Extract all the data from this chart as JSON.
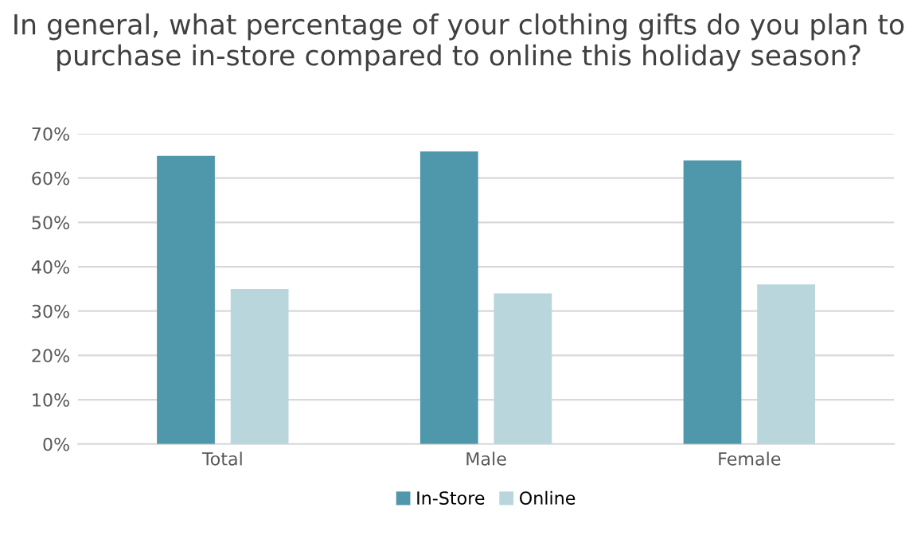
{
  "chart_data": {
    "type": "bar",
    "title": "In general, what percentage of your clothing gifts do you plan to purchase in-store compared to online this holiday season?",
    "categories": [
      "Total",
      "Male",
      "Female"
    ],
    "series": [
      {
        "name": "In-Store",
        "color": "#4f97ab",
        "values": [
          65,
          66,
          64
        ]
      },
      {
        "name": "Online",
        "color": "#b9d6dc",
        "values": [
          35,
          34,
          36
        ]
      }
    ],
    "ylim": [
      0,
      70
    ],
    "yticks": [
      {
        "value": 0,
        "label": "0%"
      },
      {
        "value": 10,
        "label": "10%"
      },
      {
        "value": 20,
        "label": "20%"
      },
      {
        "value": 30,
        "label": "30%"
      },
      {
        "value": 40,
        "label": "40%"
      },
      {
        "value": 50,
        "label": "50%"
      },
      {
        "value": 60,
        "label": "60%"
      },
      {
        "value": 70,
        "label": "70%"
      }
    ],
    "grid": "y",
    "legend": "bottom"
  }
}
